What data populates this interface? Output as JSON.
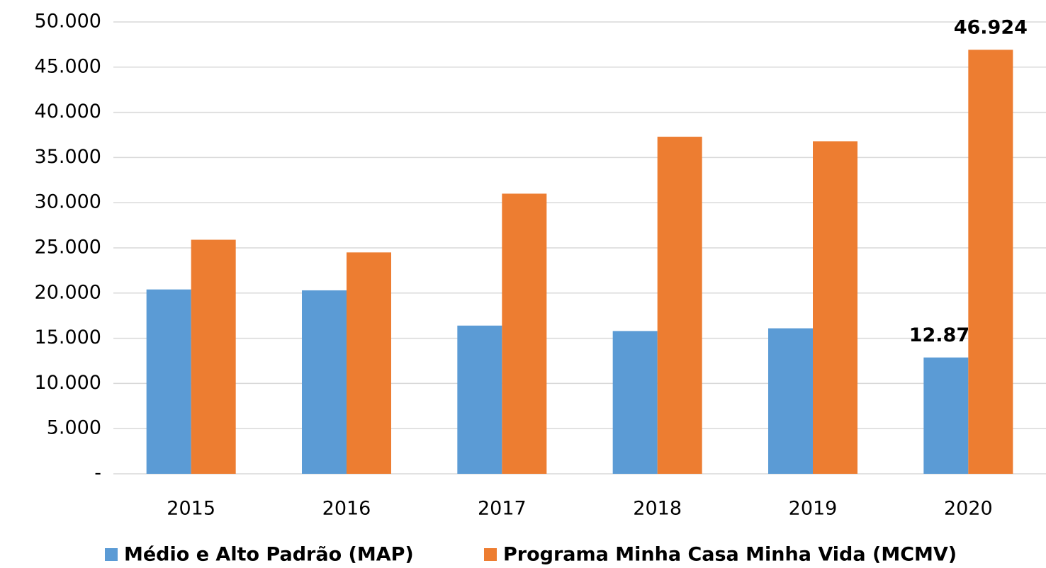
{
  "chart_data": {
    "type": "bar",
    "categories": [
      "2015",
      "2016",
      "2017",
      "2018",
      "2019",
      "2020"
    ],
    "series": [
      {
        "name": "Médio e Alto Padrão (MAP)",
        "color": "#5b9bd5",
        "values": [
          20400,
          20300,
          16400,
          15800,
          16100,
          12873
        ],
        "value_labels": [
          null,
          null,
          null,
          null,
          null,
          "12.873"
        ]
      },
      {
        "name": "Programa Minha Casa Minha Vida (MCMV)",
        "color": "#ed7d31",
        "values": [
          25900,
          24500,
          31000,
          37300,
          36800,
          46924
        ],
        "value_labels": [
          null,
          null,
          null,
          null,
          null,
          "46.924"
        ]
      }
    ],
    "ylim": [
      0,
      50000
    ],
    "yticks": [
      {
        "value": 0,
        "label": "-"
      },
      {
        "value": 5000,
        "label": "5.000"
      },
      {
        "value": 10000,
        "label": "10.000"
      },
      {
        "value": 15000,
        "label": "15.000"
      },
      {
        "value": 20000,
        "label": "20.000"
      },
      {
        "value": 25000,
        "label": "25.000"
      },
      {
        "value": 30000,
        "label": "30.000"
      },
      {
        "value": 35000,
        "label": "35.000"
      },
      {
        "value": 40000,
        "label": "40.000"
      },
      {
        "value": 45000,
        "label": "45.000"
      },
      {
        "value": 50000,
        "label": "50.000"
      }
    ],
    "grid": true,
    "legend": "bottom"
  }
}
